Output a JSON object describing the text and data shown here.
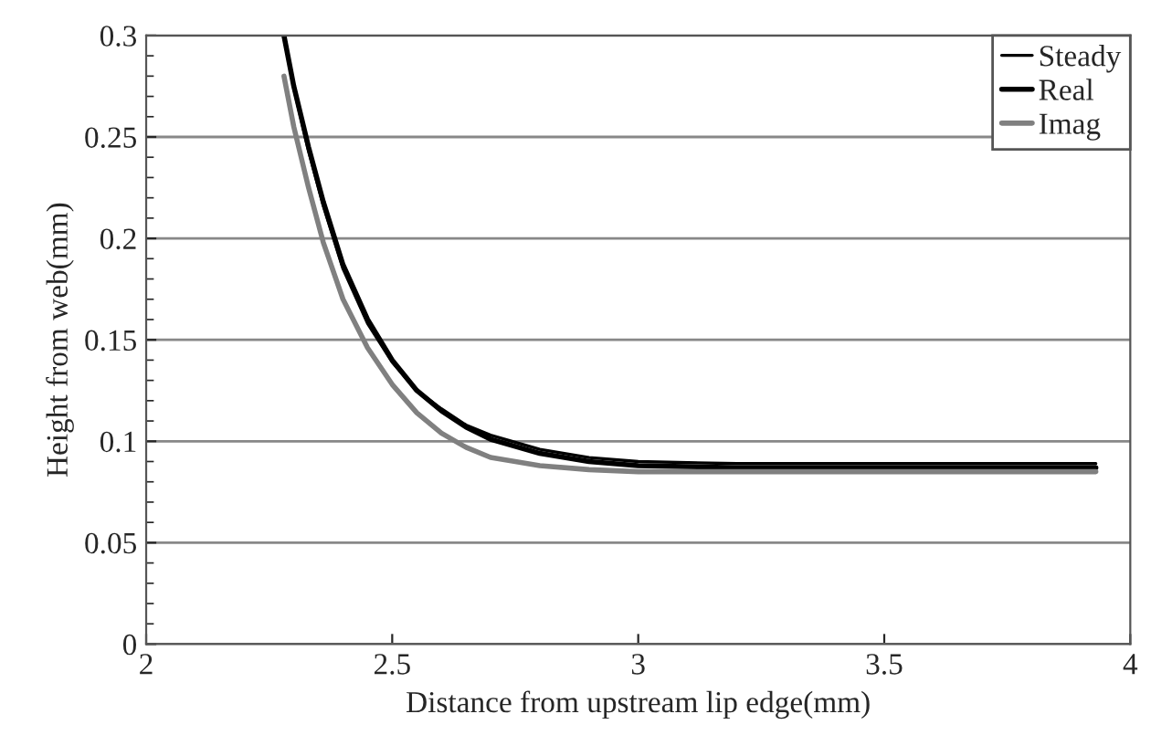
{
  "chart_data": {
    "type": "line",
    "xlabel": "Distance from upstream lip edge(mm)",
    "ylabel": "Height from web(mm)",
    "xlim": [
      2,
      4
    ],
    "xticks": [
      2,
      2.5,
      3,
      3.5,
      4
    ],
    "ylim": [
      0,
      0.3
    ],
    "yticks": [
      0,
      0.05,
      0.1,
      0.15,
      0.2,
      0.25,
      0.3
    ],
    "grid": "y",
    "legend": "top right",
    "marker": "none",
    "line_style": "solid",
    "series": [
      {
        "name": "Steady",
        "color": "#000000",
        "x": [
          2.28,
          2.3,
          2.33,
          2.36,
          2.4,
          2.45,
          2.5,
          2.55,
          2.6,
          2.65,
          2.7,
          2.8,
          2.9,
          3.0,
          3.2,
          3.5,
          3.93
        ],
        "values": [
          0.3,
          0.274,
          0.243,
          0.216,
          0.185,
          0.158,
          0.139,
          0.125,
          0.116,
          0.108,
          0.103,
          0.096,
          0.092,
          0.09,
          0.089,
          0.089,
          0.089
        ]
      },
      {
        "name": "Real",
        "color": "#000000",
        "x": [
          2.28,
          2.3,
          2.33,
          2.36,
          2.4,
          2.45,
          2.5,
          2.55,
          2.6,
          2.65,
          2.7,
          2.8,
          2.9,
          3.0,
          3.2,
          3.5,
          3.93
        ],
        "values": [
          0.3,
          0.275,
          0.245,
          0.218,
          0.187,
          0.16,
          0.14,
          0.125,
          0.115,
          0.107,
          0.101,
          0.094,
          0.09,
          0.088,
          0.087,
          0.087,
          0.087
        ]
      },
      {
        "name": "Imag",
        "color": "#808080",
        "x": [
          2.28,
          2.3,
          2.33,
          2.36,
          2.4,
          2.45,
          2.5,
          2.55,
          2.6,
          2.65,
          2.7,
          2.8,
          2.9,
          3.0,
          3.2,
          3.5,
          3.93
        ],
        "values": [
          0.28,
          0.255,
          0.225,
          0.198,
          0.17,
          0.146,
          0.128,
          0.114,
          0.104,
          0.097,
          0.092,
          0.088,
          0.086,
          0.085,
          0.085,
          0.085,
          0.085
        ]
      }
    ]
  }
}
